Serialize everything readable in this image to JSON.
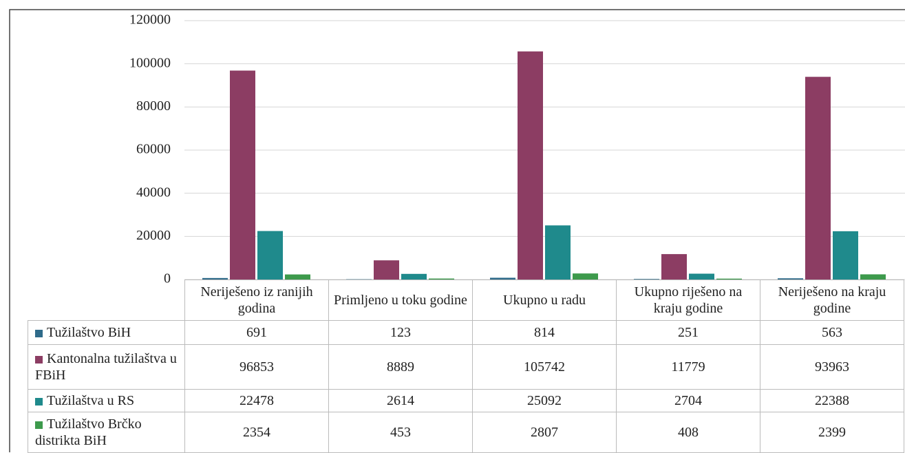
{
  "chart_data": {
    "type": "bar",
    "categories": [
      "Neriješeno iz ranijih godina",
      "Primljeno u toku godine",
      "Ukupno u radu",
      "Ukupno riješeno na kraju godine",
      "Neriješeno na kraju godine"
    ],
    "series": [
      {
        "name": "Tužilaštvo BiH",
        "color": "#2f6b8a",
        "values": [
          691,
          123,
          814,
          251,
          563
        ]
      },
      {
        "name": "Kantonalna tužilaštva u FBiH",
        "color": "#8c3d63",
        "values": [
          96853,
          8889,
          105742,
          11779,
          93963
        ]
      },
      {
        "name": "Tužilaštva u RS",
        "color": "#1f8a8c",
        "values": [
          22478,
          2614,
          25092,
          2704,
          22388
        ]
      },
      {
        "name": "Tužilaštvo Brčko distrikta BiH",
        "color": "#3d9a4c",
        "values": [
          2354,
          453,
          2807,
          408,
          2399
        ]
      }
    ],
    "ylim": [
      0,
      120000
    ],
    "yticks": [
      0,
      20000,
      40000,
      60000,
      80000,
      100000,
      120000
    ],
    "grid": true
  }
}
